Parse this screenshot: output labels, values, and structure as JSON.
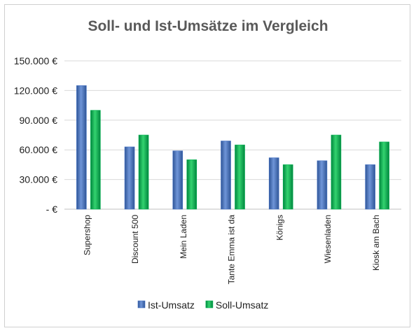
{
  "chart_data": {
    "type": "bar",
    "title": "Soll- und Ist-Umsätze im Vergleich",
    "xlabel": "",
    "ylabel": "",
    "categories": [
      "Supershop",
      "Discount 500",
      "Mein Laden",
      "Tante Emma ist da",
      "Königs",
      "Wiesenladen",
      "Kiosk am Bach"
    ],
    "series": [
      {
        "name": "Ist-Umsatz",
        "values": [
          125000,
          63000,
          59000,
          69000,
          52000,
          49000,
          45000
        ]
      },
      {
        "name": "Soll-Umsatz",
        "values": [
          100000,
          75000,
          50000,
          65000,
          45000,
          75000,
          68000
        ]
      }
    ],
    "ylim": [
      0,
      150000
    ],
    "yticks": [
      0,
      30000,
      60000,
      90000,
      120000,
      150000
    ],
    "ytick_labels": [
      "-  €",
      "30.000 €",
      "60.000 €",
      "90.000 €",
      "120.000 €",
      "150.000 €"
    ],
    "grid": true,
    "legend_position": "bottom",
    "colors": {
      "Ist-Umsatz": "#4472c4",
      "Soll-Umsatz": "#00b050"
    }
  }
}
